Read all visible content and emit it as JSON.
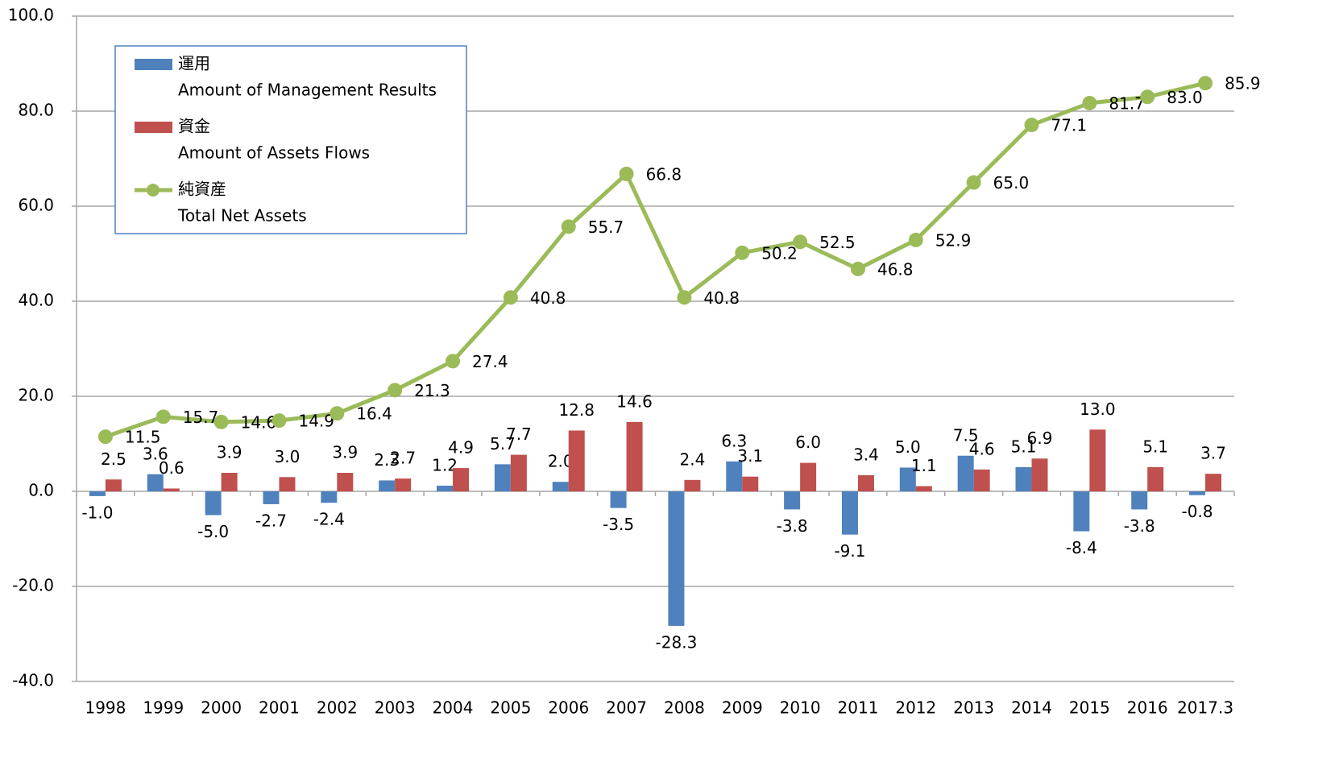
{
  "chart_data": {
    "type": "bar_line",
    "categories": [
      "1998",
      "1999",
      "2000",
      "2001",
      "2002",
      "2003",
      "2004",
      "2005",
      "2006",
      "2007",
      "2008",
      "2009",
      "2010",
      "2011",
      "2012",
      "2013",
      "2014",
      "2015",
      "2016",
      "2017.3"
    ],
    "series": [
      {
        "name": "運用",
        "name_en": "Amount of Management Results",
        "type": "bar",
        "color": "#4f81bd",
        "values": [
          -1.0,
          3.6,
          -5.0,
          -2.7,
          -2.4,
          2.3,
          1.2,
          5.7,
          2.0,
          -3.5,
          -28.3,
          6.3,
          -3.8,
          -9.1,
          5.0,
          7.5,
          5.1,
          -8.4,
          -3.8,
          -0.8
        ],
        "value_labels": [
          "-1.0",
          "3.6",
          "-5.0",
          "-2.7",
          "-2.4",
          "2.3",
          "1.2",
          "5.7",
          "2.0",
          "-3.5",
          "-28.3",
          "6.3",
          "-3.8",
          "-9.1",
          "5.0",
          "7.5",
          "5.1",
          "-8.4",
          "-3.8",
          "-0.8"
        ]
      },
      {
        "name": "資金",
        "name_en": "Amount of Assets Flows",
        "type": "bar",
        "color": "#c0504d",
        "values": [
          2.5,
          0.6,
          3.9,
          3.0,
          3.9,
          2.7,
          4.9,
          7.7,
          12.8,
          14.6,
          2.4,
          3.1,
          6.0,
          3.4,
          1.1,
          4.6,
          6.9,
          13.0,
          5.1,
          3.7
        ],
        "value_labels": [
          "2.5",
          "0.6",
          "3.9",
          "3.0",
          "3.9",
          "2.7",
          "4.9",
          "7.7",
          "12.8",
          "14.6",
          "2.4",
          "3.1",
          "6.0",
          "3.4",
          "1.1",
          "4.6",
          "6.9",
          "13.0",
          "5.1",
          "3.7"
        ]
      },
      {
        "name": "純資産",
        "name_en": "Total Net Assets",
        "type": "line",
        "color": "#9bbb59",
        "values": [
          11.5,
          15.7,
          14.6,
          14.9,
          16.4,
          21.3,
          27.4,
          40.8,
          55.7,
          66.8,
          40.8,
          50.2,
          52.5,
          46.8,
          52.9,
          65.0,
          77.1,
          81.7,
          83.0,
          85.9
        ],
        "value_labels": [
          "11.5",
          "15.7",
          "14.6",
          "14.9",
          "16.4",
          "21.3",
          "27.4",
          "40.8",
          "55.7",
          "66.8",
          "40.8",
          "50.2",
          "52.5",
          "46.8",
          "52.9",
          "65.0",
          "77.1",
          "81.7",
          "83.0",
          "85.9"
        ]
      }
    ],
    "ylim": [
      -40,
      100
    ],
    "yticks": [
      {
        "value": -40,
        "label": "-40.0"
      },
      {
        "value": -20,
        "label": "-20.0"
      },
      {
        "value": 0,
        "label": "0.0"
      },
      {
        "value": 20,
        "label": "20.0"
      },
      {
        "value": 40,
        "label": "40.0"
      },
      {
        "value": 60,
        "label": "60.0"
      },
      {
        "value": 80,
        "label": "80.0"
      },
      {
        "value": 100,
        "label": "100.0"
      }
    ],
    "grid": true,
    "legend": "upper left"
  }
}
